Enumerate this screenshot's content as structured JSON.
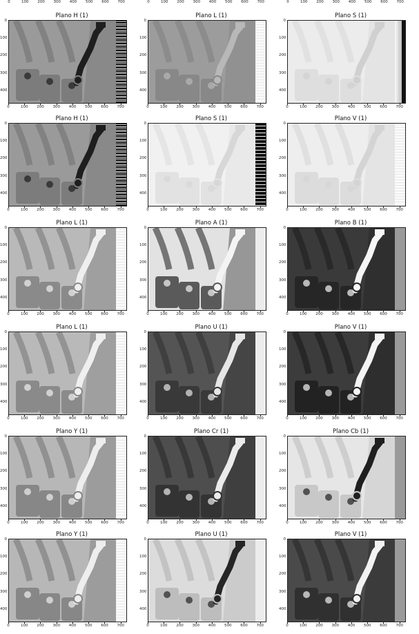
{
  "top_ticks": [
    "0",
    "100",
    "200",
    "300",
    "400",
    "500",
    "600",
    "700",
    "0",
    "100",
    "200",
    "300",
    "400",
    "500",
    "600",
    "700",
    "0",
    "100",
    "200",
    "300",
    "400",
    "500",
    "600",
    "700"
  ],
  "chart_data": [
    {
      "type": "image",
      "title": "Plano H (1)",
      "xticks": [
        "0",
        "100",
        "200",
        "300",
        "400",
        "500",
        "600",
        "700"
      ],
      "yticks": [
        "0",
        "100",
        "200",
        "300",
        "400"
      ],
      "bg": "#9a9a9a",
      "lever": "#1e1e1e",
      "parts": "#7c7c7c",
      "strip": "noise"
    },
    {
      "type": "image",
      "title": "Plano L (1)",
      "xticks": [
        "0",
        "100",
        "200",
        "300",
        "400",
        "500",
        "600",
        "700"
      ],
      "yticks": [
        "0",
        "100",
        "200",
        "300",
        "400"
      ],
      "bg": "#9c9c9c",
      "lever": "#b8b8b8",
      "parts": "#888888",
      "strip": "white"
    },
    {
      "type": "image",
      "title": "Plano S (1)",
      "xticks": [
        "0",
        "100",
        "200",
        "300",
        "400",
        "500",
        "600",
        "700"
      ],
      "yticks": [
        "0",
        "100",
        "200",
        "300",
        "400"
      ],
      "bg": "#ececec",
      "lever": "#d0d0d0",
      "parts": "#dedede",
      "strip": "gradient"
    },
    {
      "type": "image",
      "title": "Plano H (1)",
      "xticks": [
        "0",
        "100",
        "200",
        "300",
        "400",
        "500",
        "600",
        "700"
      ],
      "yticks": [
        "0",
        "100",
        "200",
        "300",
        "400"
      ],
      "bg": "#9a9a9a",
      "lever": "#1e1e1e",
      "parts": "#7c7c7c",
      "strip": "noise"
    },
    {
      "type": "image",
      "title": "Plano S (1)",
      "xticks": [
        "0",
        "100",
        "200",
        "300",
        "400",
        "500",
        "600",
        "700"
      ],
      "yticks": [
        "0",
        "100",
        "200",
        "300",
        "400"
      ],
      "bg": "#f1f1f1",
      "lever": "#d7d7d7",
      "parts": "#e2e2e2",
      "strip": "dark"
    },
    {
      "type": "image",
      "title": "Plano V (1)",
      "xticks": [
        "0",
        "100",
        "200",
        "300",
        "400",
        "500",
        "600",
        "700"
      ],
      "yticks": [
        "0",
        "100",
        "200",
        "300",
        "400"
      ],
      "bg": "#eeeeee",
      "lever": "#d4d4d4",
      "parts": "#dcdcdc",
      "strip": "white"
    },
    {
      "type": "image",
      "title": "Plano L (1)",
      "xticks": [
        "0",
        "100",
        "200",
        "300",
        "400",
        "500",
        "600",
        "700"
      ],
      "yticks": [
        "0",
        "100",
        "200",
        "300",
        "400"
      ],
      "bg": "#b9b9b9",
      "lever": "#efefef",
      "parts": "#8a8a8a",
      "strip": "white"
    },
    {
      "type": "image",
      "title": "Plano A (1)",
      "xticks": [
        "0",
        "100",
        "200",
        "300",
        "400",
        "500",
        "600",
        "700"
      ],
      "yticks": [
        "0",
        "100",
        "200",
        "300",
        "400"
      ],
      "bg": "#e2e2e2",
      "lever": "#f4f4f4",
      "parts": "#5a5a5a",
      "strip": "light"
    },
    {
      "type": "image",
      "title": "Plano B (1)",
      "xticks": [
        "0",
        "100",
        "200",
        "300",
        "400",
        "500",
        "600",
        "700"
      ],
      "yticks": [
        "0",
        "100",
        "200",
        "300",
        "400"
      ],
      "bg": "#3a3a3a",
      "lever": "#f6f6f6",
      "parts": "#262626",
      "strip": "mid"
    },
    {
      "type": "image",
      "title": "Plano L (1)",
      "xticks": [
        "0",
        "100",
        "200",
        "300",
        "400",
        "500",
        "600",
        "700"
      ],
      "yticks": [
        "0",
        "100",
        "200",
        "300",
        "400"
      ],
      "bg": "#b9b9b9",
      "lever": "#efefef",
      "parts": "#8a8a8a",
      "strip": "white"
    },
    {
      "type": "image",
      "title": "Plano U (1)",
      "xticks": [
        "0",
        "100",
        "200",
        "300",
        "400",
        "500",
        "600",
        "700"
      ],
      "yticks": [
        "0",
        "100",
        "200",
        "300",
        "400"
      ],
      "bg": "#545454",
      "lever": "#e6e6e6",
      "parts": "#393939",
      "strip": "light"
    },
    {
      "type": "image",
      "title": "Plano V (1)",
      "xticks": [
        "0",
        "100",
        "200",
        "300",
        "400",
        "500",
        "600",
        "700"
      ],
      "yticks": [
        "0",
        "100",
        "200",
        "300",
        "400"
      ],
      "bg": "#3c3c3c",
      "lever": "#f4f4f4",
      "parts": "#222222",
      "strip": "mid"
    },
    {
      "type": "image",
      "title": "Plano Y (1)",
      "xticks": [
        "0",
        "100",
        "200",
        "300",
        "400",
        "500",
        "600",
        "700"
      ],
      "yticks": [
        "0",
        "100",
        "200",
        "300",
        "400"
      ],
      "bg": "#b7b7b7",
      "lever": "#eeeeee",
      "parts": "#878787",
      "strip": "white"
    },
    {
      "type": "image",
      "title": "Plano Cr (1)",
      "xticks": [
        "0",
        "100",
        "200",
        "300",
        "400",
        "500",
        "600",
        "700"
      ],
      "yticks": [
        "0",
        "100",
        "200",
        "300",
        "400"
      ],
      "bg": "#4e4e4e",
      "lever": "#ebebeb",
      "parts": "#333333",
      "strip": "light"
    },
    {
      "type": "image",
      "title": "Plano Cb (1)",
      "xticks": [
        "0",
        "100",
        "200",
        "300",
        "400",
        "500",
        "600",
        "700"
      ],
      "yticks": [
        "0",
        "100",
        "200",
        "300",
        "400"
      ],
      "bg": "#e6e6e6",
      "lever": "#1f1f1f",
      "parts": "#c8c8c8",
      "strip": "mid"
    },
    {
      "type": "image",
      "title": "Plano Y (1)",
      "xticks": [
        "0",
        "100",
        "200",
        "300",
        "400",
        "500",
        "600",
        "700"
      ],
      "yticks": [
        "0",
        "100",
        "200",
        "300",
        "400"
      ],
      "bg": "#b7b7b7",
      "lever": "#eeeeee",
      "parts": "#878787",
      "strip": "white"
    },
    {
      "type": "image",
      "title": "Plano U (1)",
      "xticks": [
        "0",
        "100",
        "200",
        "300",
        "400",
        "500",
        "600",
        "700"
      ],
      "yticks": [
        "0",
        "100",
        "200",
        "300",
        "400"
      ],
      "bg": "#dcdcdc",
      "lever": "#252525",
      "parts": "#bdbdbd",
      "strip": "light"
    },
    {
      "type": "image",
      "title": "Plano V (1)",
      "xticks": [
        "0",
        "100",
        "200",
        "300",
        "400",
        "500",
        "600",
        "700"
      ],
      "yticks": [
        "0",
        "100",
        "200",
        "300",
        "400"
      ],
      "bg": "#4a4a4a",
      "lever": "#f2f2f2",
      "parts": "#303030",
      "strip": "mid"
    }
  ]
}
